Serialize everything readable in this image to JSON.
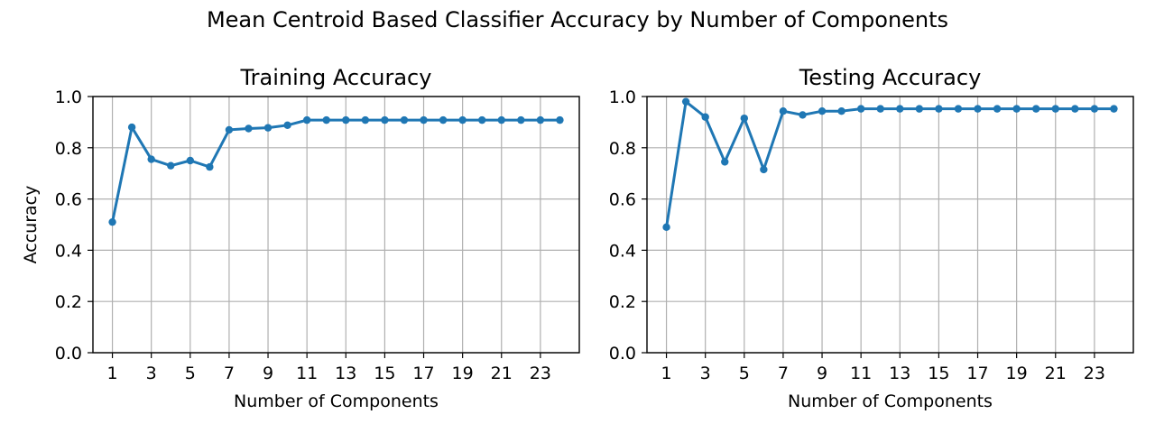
{
  "chart_data": {
    "figure_title": "Mean Centroid Based Classifier Accuracy by Number of Components",
    "series_color": "#1f77b4",
    "panels": [
      {
        "type": "line",
        "title": "Training Accuracy",
        "xlabel": "Number of Components",
        "ylabel": "Accuracy",
        "xlim": [
          0,
          25
        ],
        "ylim": [
          0.0,
          1.0
        ],
        "xticks": [
          1,
          3,
          5,
          7,
          9,
          11,
          13,
          15,
          17,
          19,
          21,
          23
        ],
        "yticks": [
          "0.0",
          "0.2",
          "0.4",
          "0.6",
          "0.8",
          "1.0"
        ],
        "grid": true,
        "x": [
          1,
          2,
          3,
          4,
          5,
          6,
          7,
          8,
          9,
          10,
          11,
          12,
          13,
          14,
          15,
          16,
          17,
          18,
          19,
          20,
          21,
          22,
          23,
          24
        ],
        "y": [
          0.51,
          0.88,
          0.755,
          0.73,
          0.75,
          0.725,
          0.87,
          0.875,
          0.878,
          0.888,
          0.908,
          0.908,
          0.908,
          0.908,
          0.908,
          0.908,
          0.908,
          0.908,
          0.908,
          0.908,
          0.908,
          0.908,
          0.908,
          0.908
        ]
      },
      {
        "type": "line",
        "title": "Testing Accuracy",
        "xlabel": "Number of Components",
        "ylabel": "",
        "xlim": [
          0,
          25
        ],
        "ylim": [
          0.0,
          1.0
        ],
        "xticks": [
          1,
          3,
          5,
          7,
          9,
          11,
          13,
          15,
          17,
          19,
          21,
          23
        ],
        "yticks": [
          "0.0",
          "0.2",
          "0.4",
          "0.6",
          "0.8",
          "1.0"
        ],
        "grid": true,
        "x": [
          1,
          2,
          3,
          4,
          5,
          6,
          7,
          8,
          9,
          10,
          11,
          12,
          13,
          14,
          15,
          16,
          17,
          18,
          19,
          20,
          21,
          22,
          23,
          24
        ],
        "y": [
          0.49,
          0.98,
          0.92,
          0.745,
          0.915,
          0.715,
          0.943,
          0.928,
          0.943,
          0.943,
          0.952,
          0.952,
          0.952,
          0.952,
          0.952,
          0.952,
          0.952,
          0.952,
          0.952,
          0.952,
          0.952,
          0.952,
          0.952,
          0.952
        ]
      }
    ]
  }
}
